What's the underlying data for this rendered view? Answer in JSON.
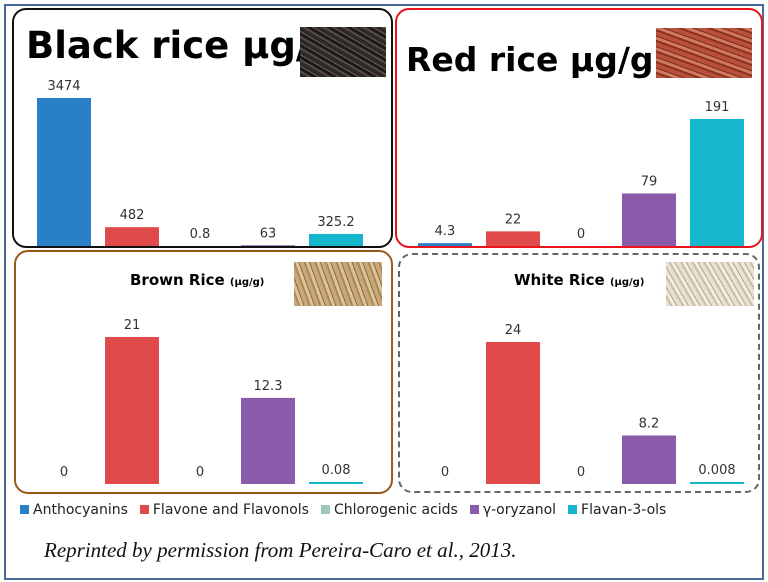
{
  "chart_data": [
    {
      "type": "bar",
      "title": "Black rice µg/g",
      "categories": [
        "Anthocyanins",
        "Flavone and Flavonols",
        "Chlorogenic acids",
        "γ-oryzanol",
        "Flavan-3-ols"
      ],
      "values": [
        3474,
        482,
        0.8,
        63,
        325.2
      ],
      "labels": [
        "3474",
        "482",
        "0.8",
        "63",
        "325.2"
      ]
    },
    {
      "type": "bar",
      "title": "Red rice µg/g",
      "categories": [
        "Anthocyanins",
        "Flavone and Flavonols",
        "Chlorogenic acids",
        "γ-oryzanol",
        "Flavan-3-ols"
      ],
      "values": [
        4.3,
        22,
        0,
        79,
        191
      ],
      "labels": [
        "4.3",
        "22",
        "0",
        "79",
        "191"
      ]
    },
    {
      "type": "bar",
      "title": "Brown Rice",
      "unit": "(µg/g)",
      "categories": [
        "Anthocyanins",
        "Flavone and Flavonols",
        "Chlorogenic acids",
        "γ-oryzanol",
        "Flavan-3-ols"
      ],
      "values": [
        0,
        21,
        0,
        12.3,
        0.08
      ],
      "labels": [
        "0",
        "21",
        "0",
        "12.3",
        "0.08"
      ]
    },
    {
      "type": "bar",
      "title": "White Rice",
      "unit": "(µg/g)",
      "categories": [
        "Anthocyanins",
        "Flavone and Flavonols",
        "Chlorogenic acids",
        "γ-oryzanol",
        "Flavan-3-ols"
      ],
      "values": [
        0,
        24,
        0,
        8.2,
        0.008
      ],
      "labels": [
        "0",
        "24",
        "0",
        "8.2",
        "0.008"
      ]
    }
  ],
  "legend": [
    {
      "label": "Anthocyanins",
      "color": "#2a7fc9"
    },
    {
      "label": "Flavone and Flavonols",
      "color": "#e04a4a"
    },
    {
      "label": "Chlorogenic acids",
      "color": "#9cc9b8"
    },
    {
      "label": "γ-oryzanol",
      "color": "#8a5aab"
    },
    {
      "label": "Flavan-3-ols",
      "color": "#16b6cc"
    }
  ],
  "credit": "Reprinted by permission from Pereira-Caro et al., 2013."
}
